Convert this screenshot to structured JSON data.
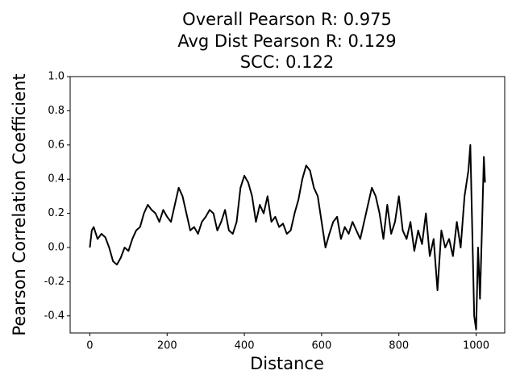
{
  "chart_data": {
    "type": "line",
    "title": [
      "Overall Pearson R: 0.975",
      "Avg Dist Pearson R: 0.129",
      "SCC: 0.122"
    ],
    "x_label": "Distance",
    "y_label": "Pearson Correlation Coefficient",
    "color": "#000000",
    "x": [
      0,
      5,
      10,
      20,
      30,
      40,
      50,
      60,
      70,
      80,
      90,
      100,
      110,
      120,
      130,
      140,
      150,
      160,
      170,
      180,
      190,
      200,
      210,
      220,
      230,
      240,
      250,
      260,
      270,
      280,
      290,
      300,
      310,
      320,
      330,
      340,
      350,
      360,
      370,
      380,
      390,
      400,
      410,
      420,
      430,
      440,
      450,
      460,
      470,
      480,
      490,
      500,
      510,
      520,
      530,
      540,
      550,
      560,
      570,
      580,
      590,
      600,
      610,
      620,
      630,
      640,
      650,
      660,
      670,
      680,
      690,
      700,
      710,
      720,
      730,
      740,
      750,
      760,
      770,
      780,
      790,
      800,
      810,
      820,
      830,
      840,
      850,
      860,
      870,
      880,
      890,
      900,
      910,
      920,
      930,
      940,
      950,
      960,
      970,
      980,
      985,
      990,
      995,
      1000,
      1005,
      1010,
      1015,
      1020,
      1023
    ],
    "values": [
      0.0,
      0.1,
      0.12,
      0.05,
      0.08,
      0.06,
      0.0,
      -0.08,
      -0.1,
      -0.06,
      0.0,
      -0.02,
      0.05,
      0.1,
      0.12,
      0.2,
      0.25,
      0.22,
      0.2,
      0.15,
      0.22,
      0.18,
      0.15,
      0.25,
      0.35,
      0.3,
      0.2,
      0.1,
      0.12,
      0.08,
      0.15,
      0.18,
      0.22,
      0.2,
      0.1,
      0.15,
      0.22,
      0.1,
      0.08,
      0.15,
      0.35,
      0.42,
      0.38,
      0.3,
      0.15,
      0.25,
      0.2,
      0.3,
      0.15,
      0.18,
      0.12,
      0.14,
      0.08,
      0.1,
      0.2,
      0.28,
      0.4,
      0.48,
      0.45,
      0.35,
      0.3,
      0.15,
      0.0,
      0.08,
      0.15,
      0.18,
      0.05,
      0.12,
      0.08,
      0.15,
      0.1,
      0.05,
      0.15,
      0.25,
      0.35,
      0.3,
      0.2,
      0.05,
      0.25,
      0.08,
      0.15,
      0.3,
      0.1,
      0.05,
      0.15,
      -0.02,
      0.1,
      0.02,
      0.2,
      -0.05,
      0.05,
      -0.25,
      0.1,
      0.0,
      0.05,
      -0.05,
      0.15,
      0.0,
      0.3,
      0.45,
      0.6,
      0.1,
      -0.4,
      -0.48,
      0.0,
      -0.3,
      0.1,
      0.53,
      0.38
    ],
    "xlim": [
      -51,
      1074
    ],
    "ylim": [
      -0.5,
      1.0
    ],
    "xticks": [
      0,
      200,
      400,
      600,
      800,
      1000
    ],
    "yticks": [
      -0.4,
      -0.2,
      {
        "value": 0,
        "label": "0.0"
      },
      0.2,
      0.4,
      0.6,
      0.8,
      {
        "value": 1,
        "label": "1.0"
      }
    ]
  }
}
